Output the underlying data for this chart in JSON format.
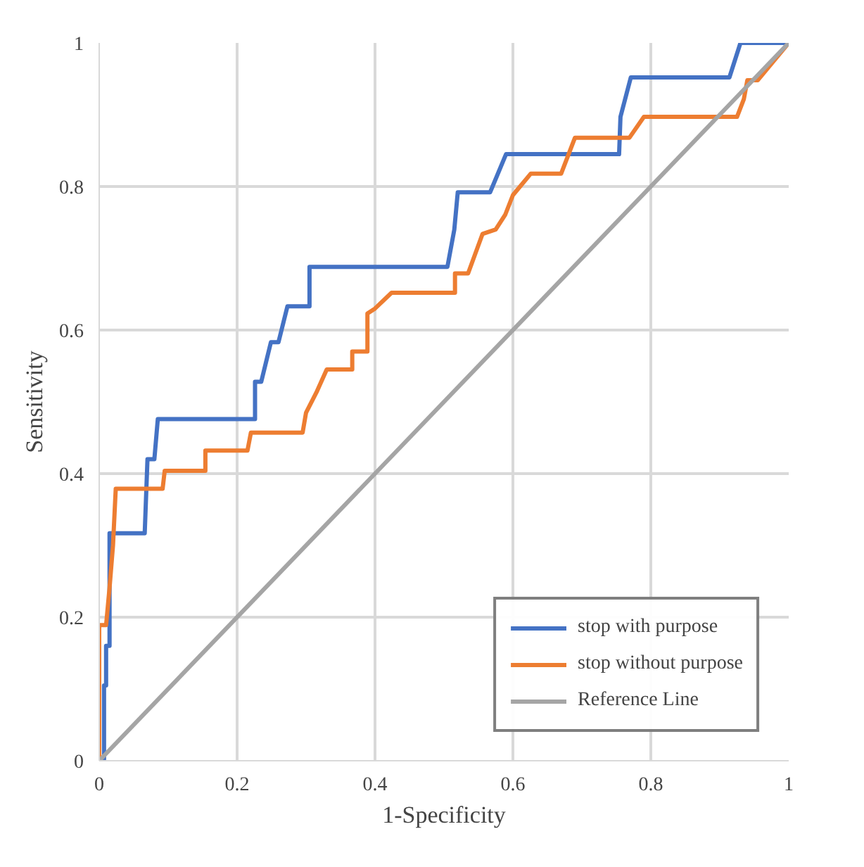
{
  "chart_data": {
    "type": "line",
    "xlabel": "1-Specificity",
    "ylabel": "Sensitivity",
    "xlim": [
      0,
      1
    ],
    "ylim": [
      0,
      1
    ],
    "xticks": [
      0,
      0.2,
      0.4,
      0.6,
      0.8,
      1
    ],
    "yticks": [
      0,
      0.2,
      0.4,
      0.6,
      0.8,
      1
    ],
    "grid": true,
    "legend": "bottom right",
    "marker": "none",
    "line_style": "solid",
    "series": [
      {
        "name": "stop with purpose",
        "color": "#4472c4",
        "x": [
          0,
          0.007,
          0.007,
          0.01,
          0.01,
          0.015,
          0.015,
          0.066,
          0.07,
          0.08,
          0.085,
          0.226,
          0.226,
          0.235,
          0.249,
          0.26,
          0.273,
          0.305,
          0.305,
          0.505,
          0.515,
          0.52,
          0.567,
          0.59,
          0.754,
          0.756,
          0.771,
          0.914,
          0.93,
          1
        ],
        "values": [
          0,
          0,
          0.105,
          0.105,
          0.16,
          0.16,
          0.317,
          0.317,
          0.42,
          0.42,
          0.476,
          0.476,
          0.528,
          0.528,
          0.583,
          0.583,
          0.633,
          0.633,
          0.688,
          0.688,
          0.74,
          0.792,
          0.792,
          0.845,
          0.845,
          0.897,
          0.952,
          0.952,
          1,
          1
        ]
      },
      {
        "name": "stop without purpose",
        "color": "#ed7d31",
        "x": [
          0,
          0,
          0.01,
          0.015,
          0.02,
          0.024,
          0.092,
          0.095,
          0.154,
          0.154,
          0.215,
          0.22,
          0.295,
          0.3,
          0.315,
          0.33,
          0.367,
          0.367,
          0.389,
          0.389,
          0.4,
          0.424,
          0.516,
          0.516,
          0.535,
          0.556,
          0.575,
          0.589,
          0.6,
          0.626,
          0.67,
          0.69,
          0.769,
          0.79,
          0.925,
          0.935,
          0.94,
          0.955,
          1
        ],
        "values": [
          0,
          0.189,
          0.189,
          0.241,
          0.3,
          0.379,
          0.379,
          0.404,
          0.404,
          0.432,
          0.432,
          0.457,
          0.457,
          0.485,
          0.513,
          0.545,
          0.545,
          0.57,
          0.57,
          0.623,
          0.63,
          0.652,
          0.652,
          0.679,
          0.679,
          0.734,
          0.74,
          0.761,
          0.788,
          0.818,
          0.818,
          0.868,
          0.868,
          0.897,
          0.897,
          0.922,
          0.948,
          0.948,
          1
        ]
      },
      {
        "name": "Reference Line",
        "color": "#a5a5a5",
        "x": [
          0,
          1
        ],
        "values": [
          0,
          1
        ]
      }
    ]
  }
}
